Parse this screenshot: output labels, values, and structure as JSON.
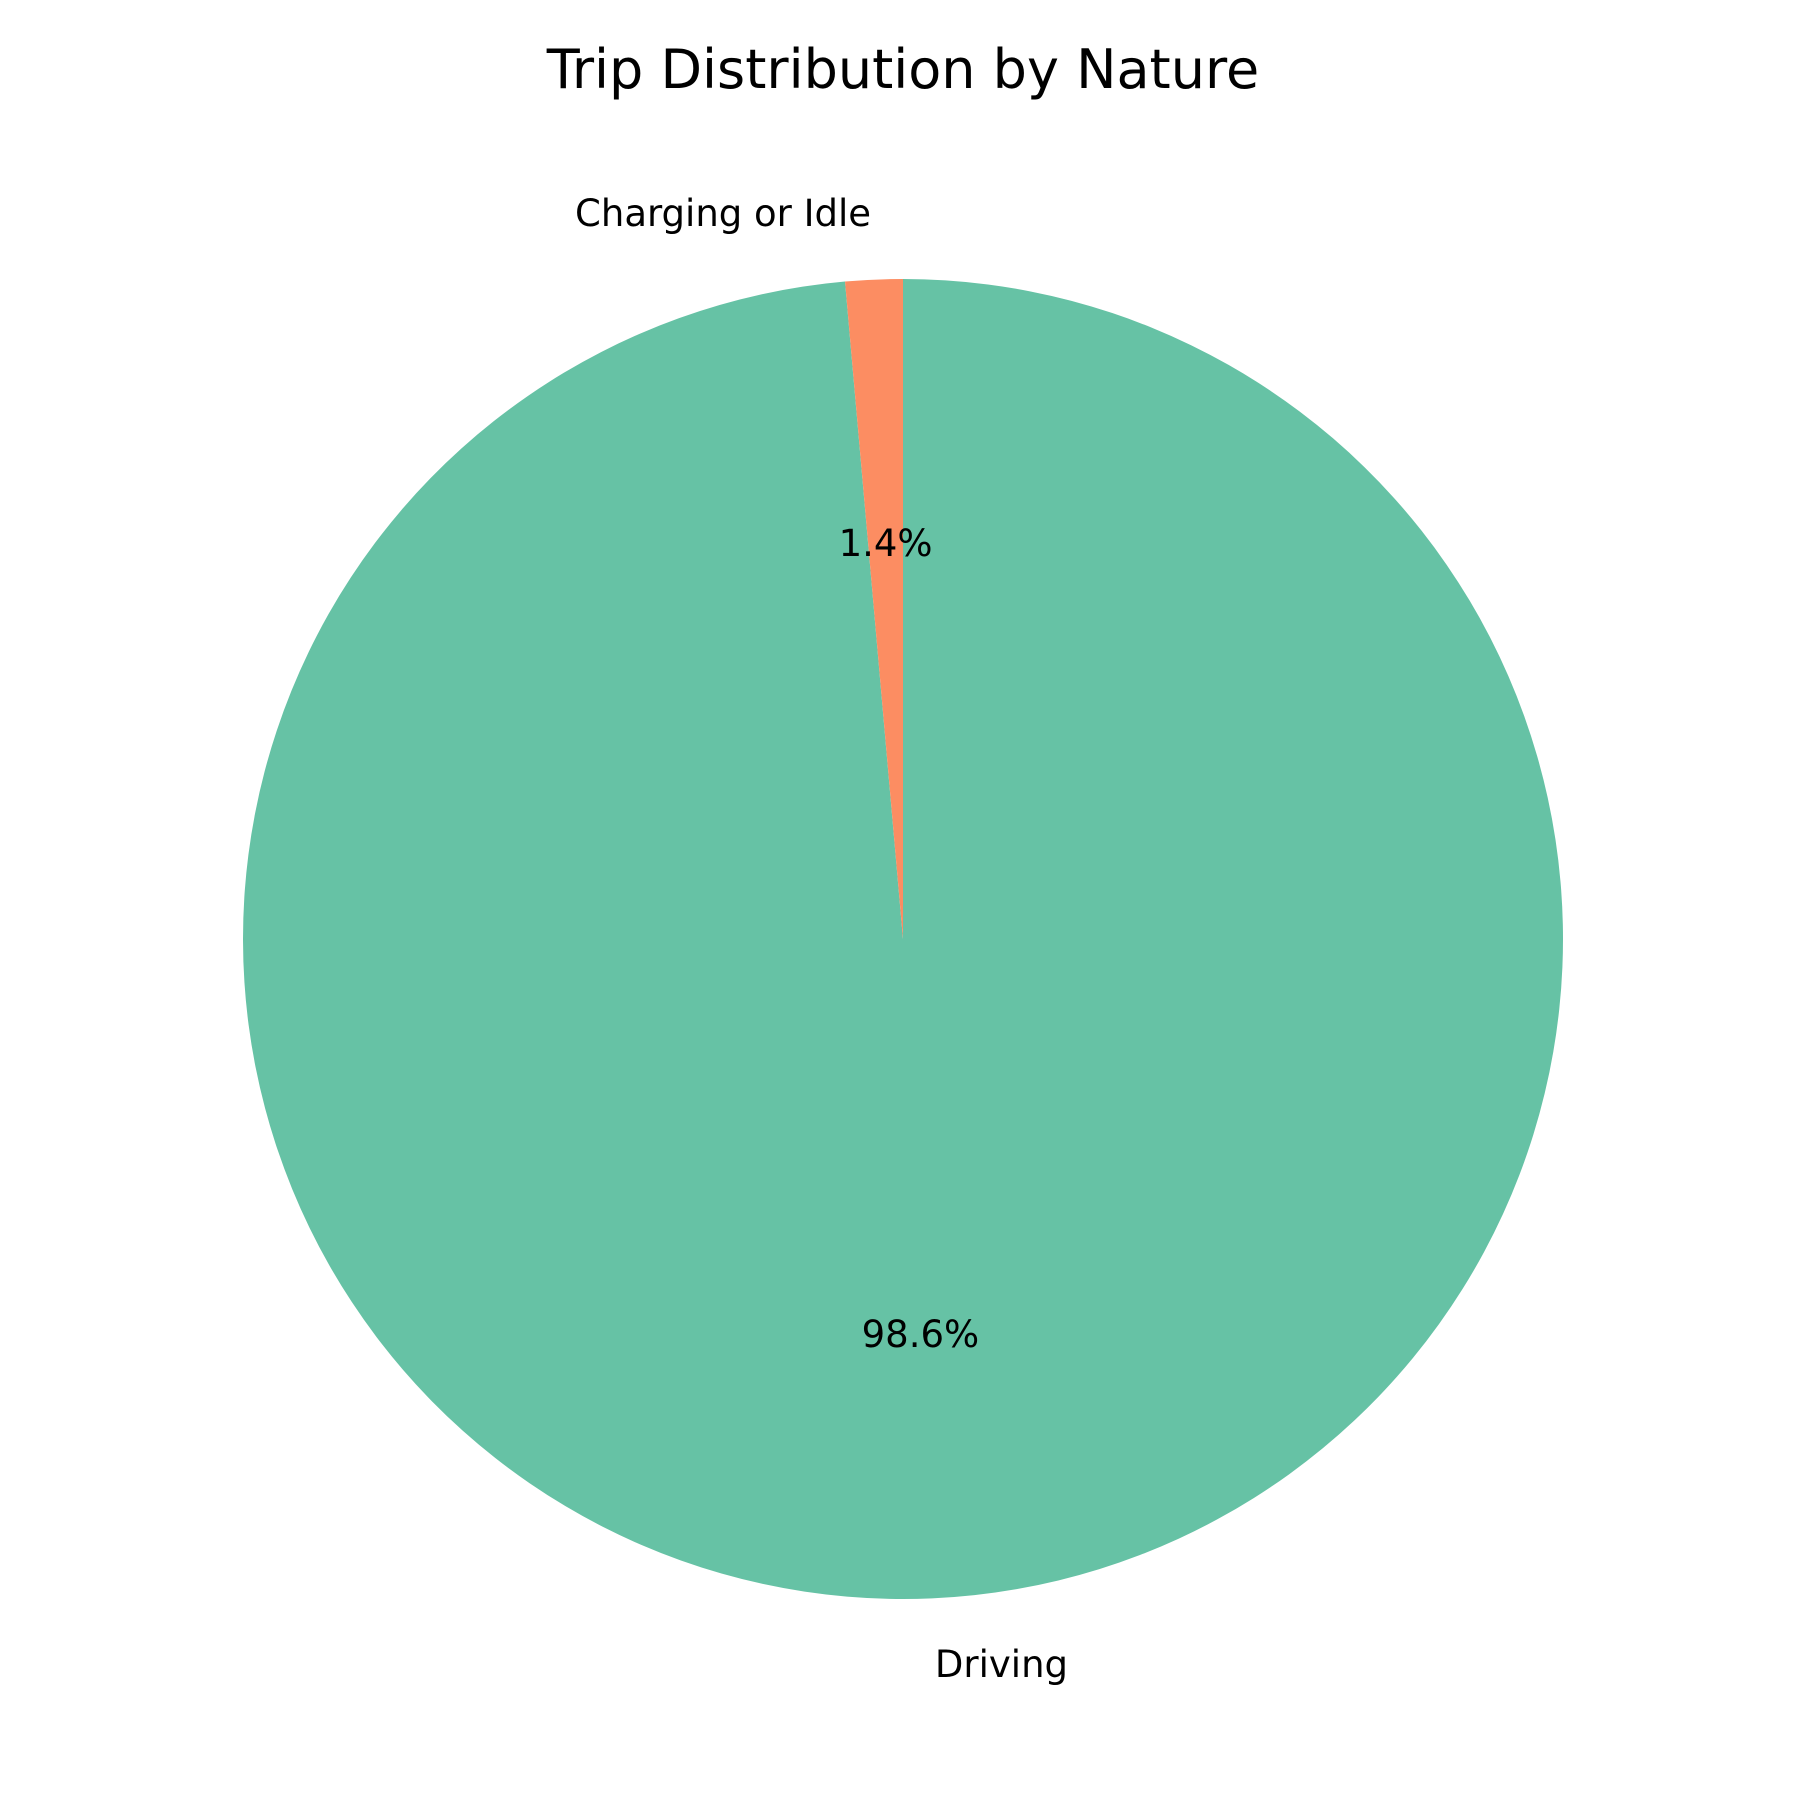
{
  "chart_data": {
    "type": "pie",
    "title": "Trip Distribution by Nature",
    "slices": [
      {
        "label": "Driving",
        "value": 98.6,
        "pct_label": "98.6%",
        "color": "#66c2a5"
      },
      {
        "label": "Charging or Idle",
        "value": 1.4,
        "pct_label": "1.4%",
        "color": "#fc8d62"
      }
    ],
    "start_angle_deg": 90,
    "direction": "clockwise",
    "legend": "none"
  }
}
